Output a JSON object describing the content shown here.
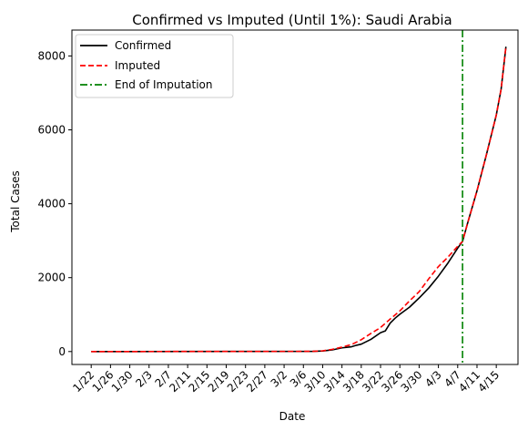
{
  "chart_data": {
    "type": "line",
    "title": "Confirmed vs Imputed (Until 1%): Saudi Arabia",
    "xlabel": "Date",
    "ylabel": "Total Cases",
    "x_tick_labels": [
      "1/22",
      "1/26",
      "1/30",
      "2/3",
      "2/7",
      "2/11",
      "2/15",
      "2/19",
      "2/23",
      "2/27",
      "3/2",
      "3/6",
      "3/10",
      "3/14",
      "3/18",
      "3/22",
      "3/26",
      "3/30",
      "4/3",
      "4/7",
      "4/11",
      "4/15"
    ],
    "x_tick_days": [
      0,
      4,
      8,
      12,
      16,
      20,
      24,
      28,
      32,
      36,
      40,
      44,
      48,
      52,
      56,
      60,
      64,
      68,
      72,
      76,
      80,
      84
    ],
    "y_tick_values": [
      0,
      2000,
      4000,
      6000,
      8000
    ],
    "y_tick_labels": [
      "0",
      "2000",
      "4000",
      "6000",
      "8000"
    ],
    "xlim_days": [
      -4,
      88.5
    ],
    "ylim": [
      -350,
      8700
    ],
    "grid": false,
    "legend_position": "upper-left",
    "series": [
      {
        "name": "Confirmed",
        "color": "#000000",
        "dash": "solid",
        "days": [
          0,
          46,
          48,
          50,
          52,
          54,
          55,
          56,
          58,
          60,
          61,
          62,
          63,
          64,
          66,
          68,
          70,
          72,
          74,
          76,
          77,
          78,
          80,
          82,
          84,
          85,
          86
        ],
        "values": [
          0,
          5,
          15,
          45,
          100,
          130,
          170,
          200,
          330,
          510,
          560,
          770,
          900,
          1010,
          1200,
          1450,
          1720,
          2040,
          2400,
          2800,
          2980,
          3450,
          4350,
          5350,
          6400,
          7100,
          8250
        ]
      },
      {
        "name": "Imputed",
        "color": "#ff0000",
        "dash": "dashed",
        "days": [
          0,
          46,
          48,
          50,
          52,
          54,
          56,
          58,
          60,
          62,
          64,
          66,
          68,
          70,
          72,
          74,
          76,
          77,
          78,
          80,
          82,
          84,
          85,
          86
        ],
        "values": [
          0,
          5,
          20,
          60,
          120,
          190,
          320,
          490,
          650,
          880,
          1100,
          1370,
          1620,
          1970,
          2300,
          2560,
          2850,
          2980,
          3450,
          4350,
          5350,
          6400,
          7100,
          8250
        ]
      }
    ],
    "vline": {
      "name": "End of Imputation",
      "day": 77,
      "color": "#008000",
      "dash": "dashdot"
    }
  }
}
